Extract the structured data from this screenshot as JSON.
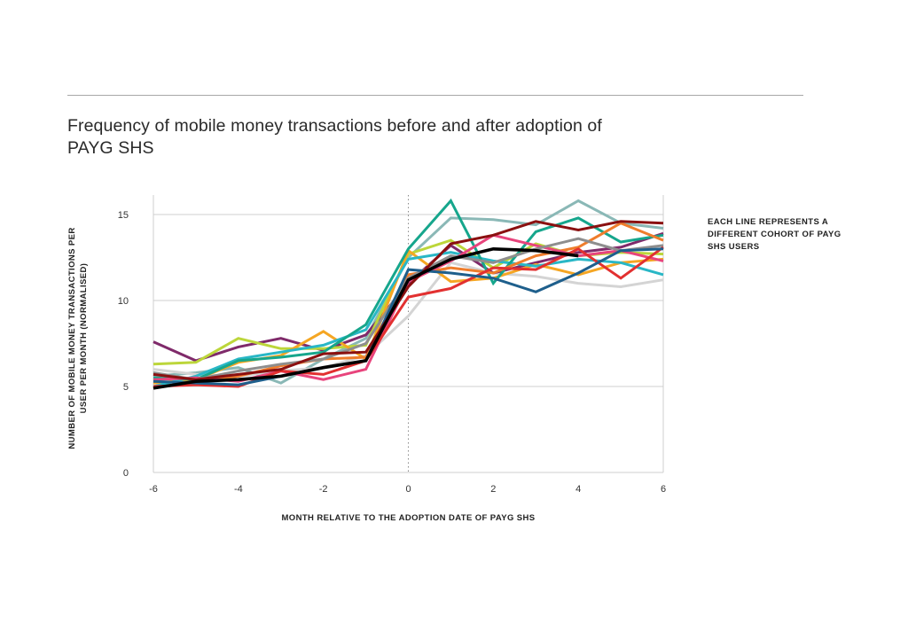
{
  "title": "Frequency of mobile money transactions before and after adoption of PAYG SHS",
  "note": "EACH LINE REPRESENTS A DIFFERENT COHORT OF PAYG SHS USERS",
  "chart_data": {
    "type": "line",
    "xlabel": "MONTH RELATIVE TO THE ADOPTION DATE OF PAYG SHS",
    "ylabel_lines": [
      "NUMBER OF MOBILE MONEY TRANSACTIONS PER",
      "USER PER MONTH (NORMALISED)"
    ],
    "xlim": [
      -6,
      6
    ],
    "ylim": [
      0,
      15
    ],
    "x_ticks": [
      -6,
      -4,
      -2,
      0,
      2,
      4,
      6
    ],
    "y_ticks": [
      0,
      5,
      10,
      15
    ],
    "grid": "horizontal",
    "reference_line_x": 0,
    "x": [
      -6,
      -5,
      -4,
      -3,
      -2,
      -1,
      0,
      1,
      2,
      3,
      4,
      5,
      6
    ],
    "series": [
      {
        "color": "#8ab8b6",
        "width": 3,
        "values": [
          5.6,
          5.8,
          6.1,
          5.2,
          6.6,
          7.8,
          12.5,
          14.8,
          14.7,
          14.4,
          15.8,
          14.5,
          14.2
        ]
      },
      {
        "color": "#d4d4d4",
        "width": 3,
        "values": [
          6.0,
          5.7,
          5.6,
          5.9,
          6.1,
          6.8,
          9.1,
          12.2,
          11.6,
          11.4,
          11.0,
          10.8,
          11.2
        ]
      },
      {
        "color": "#7f2a6a",
        "width": 3,
        "values": [
          7.6,
          6.5,
          7.3,
          7.8,
          7.1,
          8.0,
          11.0,
          13.2,
          11.6,
          12.2,
          12.8,
          13.1,
          13.9
        ]
      },
      {
        "color": "#bcd63a",
        "width": 3,
        "values": [
          6.3,
          6.4,
          7.8,
          7.2,
          7.2,
          7.4,
          12.7,
          13.5,
          11.9,
          13.3,
          12.6,
          12.8,
          12.7
        ]
      },
      {
        "color": "#f5a623",
        "width": 3,
        "values": [
          5.2,
          5.4,
          6.4,
          6.8,
          8.2,
          6.6,
          12.9,
          11.1,
          11.3,
          12.1,
          11.5,
          12.2,
          12.4
        ]
      },
      {
        "color": "#29b7c6",
        "width": 3,
        "values": [
          5.0,
          5.6,
          6.6,
          7.0,
          7.4,
          8.3,
          12.4,
          12.8,
          12.3,
          12.0,
          12.4,
          12.2,
          11.5
        ]
      },
      {
        "color": "#16a68c",
        "width": 3,
        "values": [
          5.5,
          5.4,
          6.5,
          6.7,
          7.0,
          8.6,
          13.0,
          15.8,
          11.0,
          14.0,
          14.8,
          13.4,
          13.8
        ]
      },
      {
        "color": "#ef7d2c",
        "width": 3,
        "values": [
          4.9,
          5.3,
          5.6,
          6.2,
          6.6,
          6.7,
          11.5,
          11.9,
          11.6,
          12.6,
          13.1,
          14.5,
          13.5
        ]
      },
      {
        "color": "#e8447c",
        "width": 3,
        "values": [
          5.4,
          5.5,
          5.3,
          5.9,
          5.4,
          6.0,
          11.1,
          12.3,
          13.8,
          13.2,
          12.6,
          12.9,
          12.3
        ]
      },
      {
        "color": "#8e8e8e",
        "width": 3,
        "values": [
          5.8,
          5.4,
          5.9,
          6.3,
          6.6,
          7.5,
          11.3,
          12.6,
          12.2,
          13.0,
          13.6,
          12.9,
          13.2
        ]
      },
      {
        "color": "#e23030",
        "width": 3,
        "values": [
          5.0,
          5.1,
          5.0,
          5.9,
          5.7,
          6.5,
          10.2,
          10.7,
          11.9,
          11.8,
          13.0,
          11.3,
          13.1
        ]
      },
      {
        "color": "#1e5f8c",
        "width": 3,
        "values": [
          5.3,
          5.2,
          5.1,
          5.6,
          6.1,
          6.5,
          11.8,
          11.6,
          11.3,
          10.5,
          11.6,
          12.9,
          13.0
        ]
      },
      {
        "color": "#8b1010",
        "width": 3,
        "values": [
          5.7,
          5.4,
          5.7,
          6.0,
          6.9,
          7.0,
          10.8,
          13.3,
          13.8,
          14.6,
          14.1,
          14.6,
          14.5
        ]
      },
      {
        "color": "#000000",
        "width": 3.6,
        "values": [
          4.9,
          5.3,
          5.4,
          5.6,
          6.1,
          6.5,
          11.2,
          12.4,
          13.0,
          12.9,
          12.6,
          null,
          null
        ]
      }
    ]
  }
}
